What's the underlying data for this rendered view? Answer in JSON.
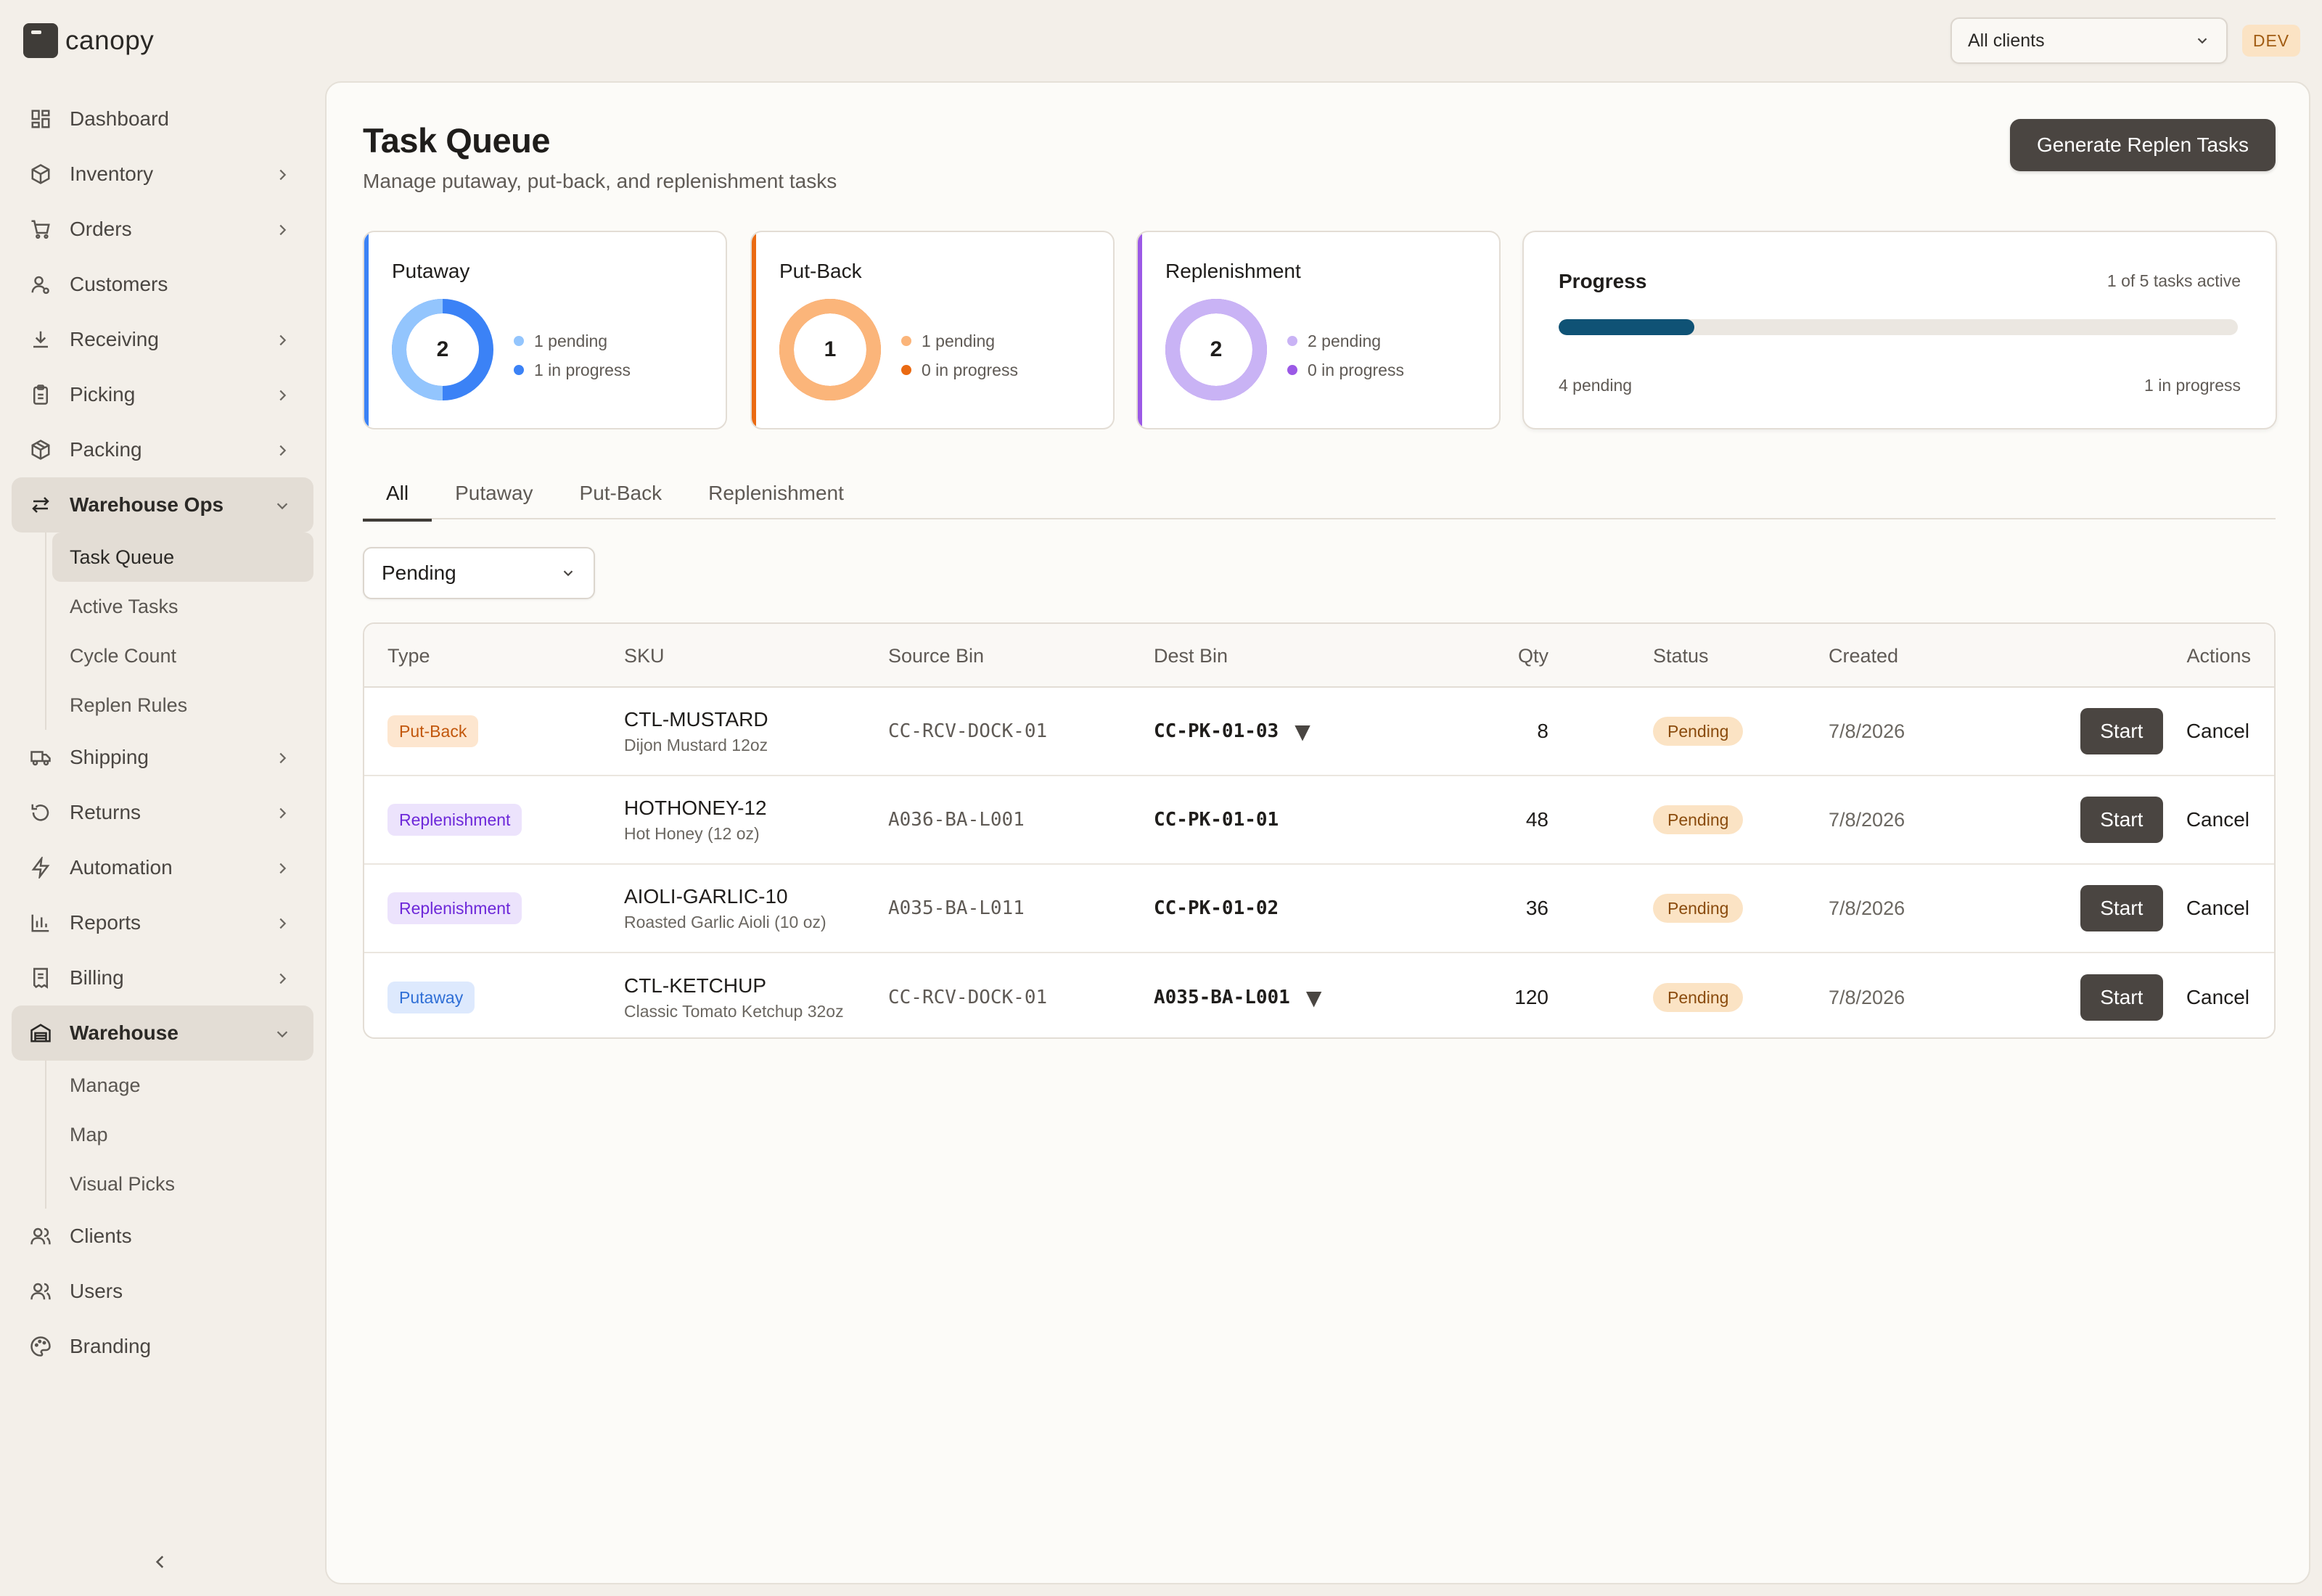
{
  "brand": {
    "name": "canopy"
  },
  "topbar": {
    "client_select": "All clients",
    "env_badge": "DEV"
  },
  "sidebar": {
    "items": [
      {
        "label": "Dashboard",
        "icon": "dashboard-icon"
      },
      {
        "label": "Inventory",
        "icon": "box-icon",
        "chevron": true
      },
      {
        "label": "Orders",
        "icon": "cart-icon",
        "chevron": true
      },
      {
        "label": "Customers",
        "icon": "user-icon"
      },
      {
        "label": "Receiving",
        "icon": "download-icon",
        "chevron": true
      },
      {
        "label": "Picking",
        "icon": "clipboard-icon",
        "chevron": true
      },
      {
        "label": "Packing",
        "icon": "package-icon",
        "chevron": true
      },
      {
        "label": "Warehouse Ops",
        "icon": "arrows-icon",
        "expanded": true,
        "children": [
          "Task Queue",
          "Active Tasks",
          "Cycle Count",
          "Replen Rules"
        ]
      },
      {
        "label": "Shipping",
        "icon": "truck-icon",
        "chevron": true
      },
      {
        "label": "Returns",
        "icon": "undo-icon",
        "chevron": true
      },
      {
        "label": "Automation",
        "icon": "bolt-icon",
        "chevron": true
      },
      {
        "label": "Reports",
        "icon": "bar-chart-icon",
        "chevron": true
      },
      {
        "label": "Billing",
        "icon": "receipt-icon",
        "chevron": true
      },
      {
        "label": "Warehouse",
        "icon": "warehouse-icon",
        "expanded": true,
        "children": [
          "Manage",
          "Map",
          "Visual Picks"
        ]
      },
      {
        "label": "Clients",
        "icon": "users-icon"
      },
      {
        "label": "Users",
        "icon": "users-icon"
      },
      {
        "label": "Branding",
        "icon": "palette-icon"
      }
    ],
    "active_sub": "Task Queue"
  },
  "page": {
    "title": "Task Queue",
    "subtitle": "Manage putaway, put-back, and replenishment tasks",
    "primary_button": "Generate Replen Tasks"
  },
  "stats": [
    {
      "title": "Putaway",
      "count": "2",
      "pending": "1 pending",
      "in_progress": "1 in progress",
      "pending_frac": 0.5,
      "color": "#3b82f6",
      "light": "#93c5fd"
    },
    {
      "title": "Put-Back",
      "count": "1",
      "pending": "1 pending",
      "in_progress": "0 in progress",
      "pending_frac": 1.0,
      "color": "#ea6a12",
      "light": "#fbb57a"
    },
    {
      "title": "Replenishment",
      "count": "2",
      "pending": "2 pending",
      "in_progress": "0 in progress",
      "pending_frac": 1.0,
      "color": "#9b59e6",
      "light": "#c9b3f5"
    }
  ],
  "progress": {
    "title": "Progress",
    "active_text": "1 of 5 tasks active",
    "fraction": 0.2,
    "pending_text": "4 pending",
    "in_progress_text": "1 in progress"
  },
  "tabs": [
    "All",
    "Putaway",
    "Put-Back",
    "Replenishment"
  ],
  "filter": {
    "status": "Pending"
  },
  "table": {
    "columns": {
      "type": "Type",
      "sku": "SKU",
      "source": "Source Bin",
      "dest": "Dest Bin",
      "qty": "Qty",
      "status": "Status",
      "created": "Created",
      "actions": "Actions"
    },
    "rows": [
      {
        "type": "Put-Back",
        "sku": "CTL-MUSTARD",
        "name": "Dijon Mustard 12oz",
        "source": "CC-RCV-DOCK-01",
        "dest": "CC-PK-01-03",
        "dest_caret": true,
        "qty": "8",
        "status": "Pending",
        "created": "7/8/2026"
      },
      {
        "type": "Replenishment",
        "sku": "HOTHONEY-12",
        "name": "Hot Honey (12 oz)",
        "source": "A036-BA-L001",
        "dest": "CC-PK-01-01",
        "dest_caret": false,
        "qty": "48",
        "status": "Pending",
        "created": "7/8/2026"
      },
      {
        "type": "Replenishment",
        "sku": "AIOLI-GARLIC-10",
        "name": "Roasted Garlic Aioli (10 oz)",
        "source": "A035-BA-L011",
        "dest": "CC-PK-01-02",
        "dest_caret": false,
        "qty": "36",
        "status": "Pending",
        "created": "7/8/2026"
      },
      {
        "type": "Putaway",
        "sku": "CTL-KETCHUP",
        "name": "Classic Tomato Ketchup 32oz",
        "source": "CC-RCV-DOCK-01",
        "dest": "A035-BA-L001",
        "dest_caret": true,
        "qty": "120",
        "status": "Pending",
        "created": "7/8/2026"
      }
    ],
    "start_label": "Start",
    "cancel_label": "Cancel",
    "caret_glyph": "▼"
  },
  "type_colors": {
    "Put-Back": {
      "bg": "#fde6cf",
      "fg": "#c2570c"
    },
    "Replenishment": {
      "bg": "#ece3fc",
      "fg": "#6d28d9"
    },
    "Putaway": {
      "bg": "#dde9fd",
      "fg": "#2f6fd6"
    }
  }
}
